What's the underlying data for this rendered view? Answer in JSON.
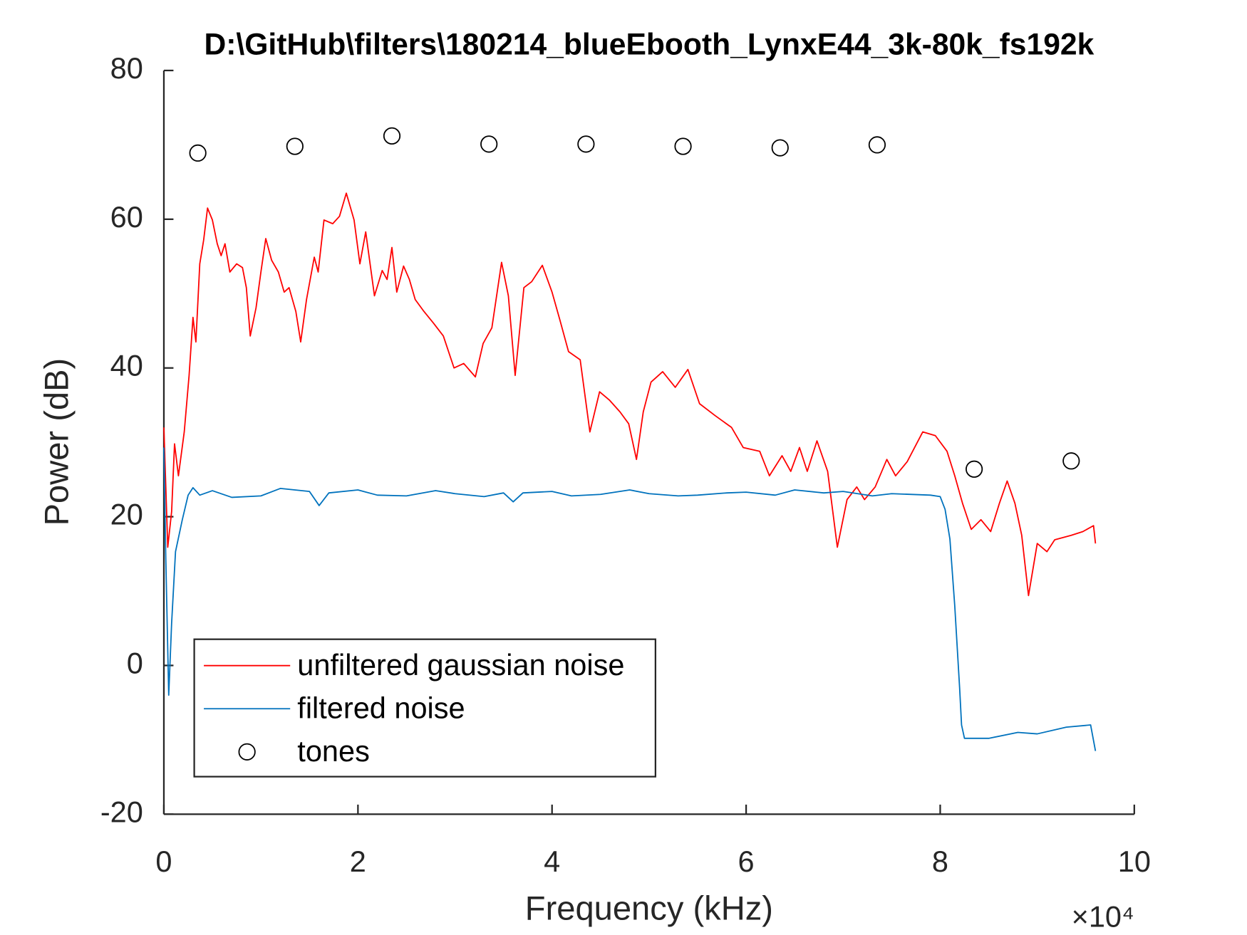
{
  "chart_data": {
    "type": "line",
    "title": "D:\\GitHub\\filters\\180214_blueEbooth_LynxE44_3k-80k_fs192k",
    "x_label": "Frequency (kHz)",
    "y_label": "Power (dB)",
    "x_exponent_label": "×10⁴",
    "xlim": [
      0,
      10
    ],
    "xticks": [
      0,
      2,
      4,
      6,
      8,
      10
    ],
    "ylim": [
      -20,
      80
    ],
    "yticks": [
      -20,
      0,
      20,
      40,
      60,
      80
    ],
    "legend_position": "lower left",
    "grid": false,
    "series": [
      {
        "name": "unfiltered gaussian noise",
        "color": "#ff0000",
        "marker": "none",
        "x": [
          0,
          0.04,
          0.08,
          0.11,
          0.15,
          0.21,
          0.26,
          0.3,
          0.33,
          0.37,
          0.41,
          0.45,
          0.5,
          0.55,
          0.59,
          0.63,
          0.68,
          0.75,
          0.81,
          0.85,
          0.89,
          0.95,
          1.0,
          1.05,
          1.11,
          1.18,
          1.24,
          1.29,
          1.36,
          1.41,
          1.47,
          1.55,
          1.59,
          1.65,
          1.74,
          1.81,
          1.88,
          1.96,
          2.02,
          2.08,
          2.17,
          2.25,
          2.3,
          2.35,
          2.4,
          2.47,
          2.53,
          2.59,
          2.68,
          2.78,
          2.88,
          2.99,
          3.09,
          3.21,
          3.29,
          3.38,
          3.48,
          3.55,
          3.62,
          3.71,
          3.79,
          3.9,
          4.0,
          4.08,
          4.17,
          4.29,
          4.39,
          4.49,
          4.59,
          4.7,
          4.79,
          4.87,
          4.94,
          5.02,
          5.14,
          5.27,
          5.4,
          5.52,
          5.68,
          5.85,
          5.97,
          6.14,
          6.24,
          6.37,
          6.46,
          6.55,
          6.63,
          6.73,
          6.84,
          6.94,
          7.04,
          7.14,
          7.22,
          7.33,
          7.45,
          7.54,
          7.66,
          7.82,
          7.95,
          8.07,
          8.15,
          8.23,
          8.32,
          8.42,
          8.52,
          8.61,
          8.69,
          8.77,
          8.84,
          8.91,
          9.0,
          9.1,
          9.18,
          9.35,
          9.47,
          9.58,
          9.6
        ],
        "values": [
          32,
          15.9,
          20.7,
          29.8,
          25.5,
          31.4,
          39,
          46.8,
          43.5,
          54,
          57.2,
          61.5,
          59.9,
          56.7,
          55.1,
          56.7,
          52.9,
          54,
          53.5,
          50.8,
          44.3,
          48.1,
          52.9,
          57.4,
          54.5,
          52.9,
          50.2,
          50.8,
          47.6,
          43.5,
          49.2,
          54.9,
          52.9,
          59.9,
          59.4,
          60.4,
          63.5,
          59.9,
          54,
          58.3,
          49.7,
          53.1,
          51.9,
          56.2,
          50.2,
          53.7,
          51.9,
          49.2,
          47.6,
          46.0,
          44.3,
          40,
          40.6,
          38.8,
          43.3,
          45.4,
          54.2,
          49.7,
          39,
          50.8,
          51.6,
          53.8,
          50.2,
          46.5,
          42.2,
          41.1,
          31.4,
          36.8,
          35.7,
          34.1,
          32.5,
          27.7,
          34.1,
          38.1,
          39.5,
          37.4,
          39.8,
          35.2,
          33.6,
          32,
          29.3,
          28.8,
          25.5,
          28.2,
          26.1,
          29.3,
          26.1,
          30.2,
          26.1,
          15.9,
          22.3,
          24,
          22.3,
          24,
          27.7,
          25.5,
          27.4,
          31.4,
          30.9,
          28.8,
          25.5,
          21.8,
          18.3,
          19.6,
          18,
          21.8,
          24.8,
          21.8,
          17.5,
          9.4,
          16.4,
          15.3,
          16.9,
          17.5,
          18,
          18.8,
          16.4
        ]
      },
      {
        "name": "filtered noise",
        "color": "#0072bd",
        "marker": "none",
        "x": [
          0,
          0.02,
          0.05,
          0.08,
          0.12,
          0.19,
          0.25,
          0.3,
          0.37,
          0.5,
          0.7,
          1.0,
          1.2,
          1.5,
          1.6,
          1.7,
          2.0,
          2.2,
          2.5,
          2.8,
          3.0,
          3.3,
          3.5,
          3.6,
          3.7,
          4.0,
          4.2,
          4.5,
          4.8,
          5.0,
          5.3,
          5.5,
          5.8,
          6.0,
          6.3,
          6.5,
          6.8,
          7.0,
          7.3,
          7.5,
          7.9,
          8.0,
          8.05,
          8.1,
          8.15,
          8.2,
          8.22,
          8.25,
          8.5,
          8.8,
          9.0,
          9.3,
          9.55,
          9.6
        ],
        "values": [
          29.3,
          14.3,
          -4,
          5.7,
          15.3,
          19.6,
          22.9,
          23.9,
          22.9,
          23.5,
          22.6,
          22.8,
          23.8,
          23.4,
          21.5,
          23.2,
          23.6,
          22.9,
          22.8,
          23.5,
          23.1,
          22.7,
          23.2,
          22,
          23.2,
          23.4,
          22.8,
          23.0,
          23.6,
          23.1,
          22.8,
          22.9,
          23.2,
          23.3,
          22.9,
          23.6,
          23.2,
          23.4,
          22.8,
          23.1,
          22.9,
          22.7,
          21,
          17,
          8,
          -3,
          -8,
          -9.8,
          -9.8,
          -9,
          -9.2,
          -8.3,
          -8,
          -11.5
        ]
      },
      {
        "name": "tones",
        "color": "#000000",
        "marker": "circle",
        "line": false,
        "x": [
          0.35,
          1.35,
          2.35,
          3.35,
          4.35,
          5.35,
          6.35,
          7.35,
          8.35,
          9.35
        ],
        "values": [
          68.9,
          69.8,
          71.2,
          70.1,
          70.1,
          69.8,
          69.6,
          70.0,
          26.4,
          27.5
        ]
      }
    ]
  }
}
